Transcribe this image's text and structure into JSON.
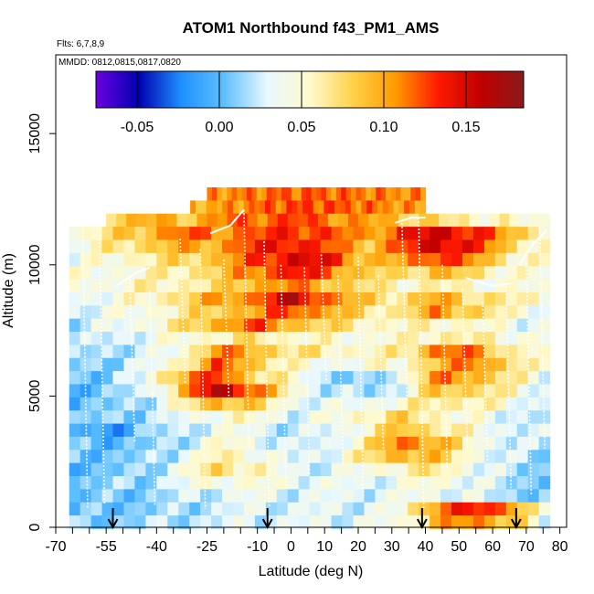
{
  "chart_data": {
    "type": "heatmap",
    "title": "ATOM1 Northbound f43_PM1_AMS",
    "subtitle_flights": "Flts: 6,7,8,9",
    "subtitle_dates": "MMDD: 0812,0815,0817,0820",
    "xlabel": "Latitude (deg N)",
    "ylabel": "Altitude (m)",
    "xlim": [
      -70,
      82
    ],
    "ylim": [
      0,
      18000
    ],
    "x_tick_labels": [
      "-70",
      "-55",
      "-40",
      "-25",
      "-10",
      "0",
      "10",
      "20",
      "30",
      "40",
      "50",
      "60",
      "70",
      "80"
    ],
    "x_tick_values": [
      -70,
      -55,
      -40,
      -25,
      -10,
      0,
      10,
      20,
      30,
      40,
      50,
      60,
      70,
      80
    ],
    "x_minor_ticks": [
      -65,
      -60,
      -50,
      -45,
      -35,
      -30,
      -20,
      -15,
      -5,
      5,
      15,
      25,
      35,
      45,
      55,
      65,
      75
    ],
    "y_tick_labels": [
      "0",
      "5000",
      "10000",
      "15000"
    ],
    "y_tick_values": [
      0,
      5000,
      10000,
      15000
    ],
    "colorbar": {
      "range": [
        -0.075,
        0.185
      ],
      "tick_labels": [
        "-0.05",
        "0.00",
        "0.05",
        "0.10",
        "0.15"
      ],
      "tick_values": [
        -0.05,
        0.0,
        0.05,
        0.1,
        0.15
      ],
      "colors": [
        "#6a00e0",
        "#0000b0",
        "#1e90ff",
        "#5fc0ff",
        "#e8f8ff",
        "#fffacd",
        "#ffd24a",
        "#ff9a00",
        "#ff1a00",
        "#c00000",
        "#8b1a1a"
      ]
    },
    "profile_markers_lat": [
      -53,
      -7,
      39,
      67
    ],
    "lat_extent": [
      -66,
      77
    ],
    "alt_extent": [
      0,
      13000
    ],
    "layers": [
      {
        "alt": 12700,
        "lat": [
          -25,
          40
        ],
        "values": [
          0.105,
          0.112,
          0.118,
          0.12,
          0.115,
          0.11,
          0.108
        ]
      },
      {
        "alt": 12200,
        "lat": [
          -30,
          40
        ],
        "values": [
          0.095,
          0.105,
          0.12,
          0.125,
          0.12,
          0.11,
          0.1
        ]
      },
      {
        "alt": 11700,
        "lat": [
          -55,
          77
        ],
        "values": [
          0.08,
          0.1,
          0.085,
          0.11,
          0.12,
          0.125,
          0.115,
          0.1,
          0.09,
          0.07,
          0.06,
          0.05,
          0.045
        ]
      },
      {
        "alt": 11200,
        "lat": [
          -66,
          77
        ],
        "values": [
          0.04,
          0.07,
          0.09,
          0.12,
          0.11,
          0.12,
          0.135,
          0.125,
          0.1,
          0.13,
          0.155,
          0.135,
          0.09,
          0.06
        ]
      },
      {
        "alt": 10700,
        "lat": [
          -66,
          77
        ],
        "values": [
          0.035,
          0.06,
          0.08,
          0.095,
          0.1,
          0.13,
          0.145,
          0.12,
          0.09,
          0.12,
          0.16,
          0.13,
          0.075,
          0.05
        ]
      },
      {
        "alt": 10200,
        "lat": [
          -66,
          77
        ],
        "values": [
          0.03,
          0.05,
          0.06,
          0.075,
          0.09,
          0.125,
          0.15,
          0.14,
          0.09,
          0.095,
          0.14,
          0.1,
          0.06,
          0.045
        ]
      },
      {
        "alt": 9700,
        "lat": [
          -66,
          77
        ],
        "values": [
          0.04,
          0.045,
          0.05,
          0.065,
          0.08,
          0.115,
          0.14,
          0.12,
          0.08,
          0.07,
          0.095,
          0.07,
          0.05,
          0.04
        ]
      },
      {
        "alt": 9200,
        "lat": [
          -66,
          77
        ],
        "values": [
          0.05,
          0.045,
          0.055,
          0.06,
          0.07,
          0.1,
          0.11,
          0.095,
          0.07,
          0.055,
          0.06,
          0.05,
          0.045,
          0.04
        ]
      },
      {
        "alt": 8700,
        "lat": [
          -66,
          77
        ],
        "values": [
          0.035,
          0.04,
          0.05,
          0.075,
          0.1,
          0.115,
          0.16,
          0.12,
          0.08,
          0.07,
          0.1,
          0.075,
          0.06,
          0.05
        ]
      },
      {
        "alt": 8200,
        "lat": [
          -66,
          77
        ],
        "values": [
          0.03,
          0.035,
          0.045,
          0.06,
          0.085,
          0.1,
          0.13,
          0.1,
          0.07,
          0.065,
          0.11,
          0.08,
          0.05,
          0.04
        ]
      },
      {
        "alt": 7700,
        "lat": [
          -66,
          77
        ],
        "values": [
          0.02,
          0.03,
          0.045,
          0.065,
          0.1,
          0.125,
          0.095,
          0.075,
          0.06,
          0.05,
          0.06,
          0.05,
          0.04,
          0.035
        ]
      },
      {
        "alt": 7200,
        "lat": [
          -66,
          77
        ],
        "values": [
          0.015,
          0.025,
          0.035,
          0.045,
          0.06,
          0.07,
          0.055,
          0.05,
          0.045,
          0.05,
          0.065,
          0.06,
          0.05,
          0.04
        ]
      },
      {
        "alt": 6700,
        "lat": [
          -66,
          77
        ],
        "values": [
          0.01,
          0.02,
          0.025,
          0.04,
          0.11,
          0.095,
          0.07,
          0.06,
          0.055,
          0.06,
          0.12,
          0.11,
          0.06,
          0.045
        ]
      },
      {
        "alt": 6200,
        "lat": [
          -66,
          77
        ],
        "values": [
          0.01,
          0.015,
          0.025,
          0.06,
          0.12,
          0.09,
          0.05,
          0.04,
          0.045,
          0.05,
          0.09,
          0.12,
          0.07,
          0.04
        ]
      },
      {
        "alt": 5700,
        "lat": [
          -66,
          77
        ],
        "values": [
          0.005,
          0.01,
          0.03,
          0.1,
          0.13,
          0.08,
          0.05,
          0.02,
          0.0,
          0.04,
          0.11,
          0.1,
          0.06,
          0.035
        ]
      },
      {
        "alt": 5200,
        "lat": [
          -66,
          77
        ],
        "values": [
          0.0,
          0.005,
          0.025,
          0.08,
          0.17,
          0.12,
          0.055,
          0.02,
          0.015,
          0.03,
          0.09,
          0.08,
          0.05,
          0.03
        ]
      },
      {
        "alt": 4700,
        "lat": [
          -66,
          77
        ],
        "values": [
          0.0,
          0.005,
          0.02,
          0.05,
          0.1,
          0.08,
          0.04,
          0.03,
          0.04,
          0.05,
          0.07,
          0.06,
          0.04,
          0.025
        ]
      },
      {
        "alt": 4200,
        "lat": [
          -66,
          77
        ],
        "values": [
          0.005,
          0.01,
          0.015,
          0.03,
          0.05,
          0.05,
          0.03,
          0.04,
          0.06,
          0.075,
          0.06,
          0.04,
          0.03,
          0.02
        ]
      },
      {
        "alt": 3700,
        "lat": [
          -66,
          77
        ],
        "values": [
          0.0,
          -0.02,
          0.01,
          0.02,
          0.04,
          0.035,
          0.02,
          0.03,
          0.05,
          0.09,
          0.07,
          0.045,
          0.03,
          0.02
        ]
      },
      {
        "alt": 3200,
        "lat": [
          -66,
          77
        ],
        "values": [
          0.005,
          0.0,
          0.005,
          0.02,
          0.05,
          0.04,
          0.02,
          0.03,
          0.06,
          0.12,
          0.095,
          0.05,
          0.025,
          0.015
        ]
      },
      {
        "alt": 2700,
        "lat": [
          -66,
          77
        ],
        "values": [
          0.005,
          0.005,
          0.01,
          0.03,
          0.06,
          0.05,
          0.025,
          0.035,
          0.065,
          0.1,
          0.085,
          0.045,
          0.02,
          0.01
        ]
      },
      {
        "alt": 2200,
        "lat": [
          -66,
          77
        ],
        "values": [
          0.0,
          0.005,
          0.01,
          0.04,
          0.075,
          0.06,
          0.03,
          0.03,
          0.04,
          0.06,
          0.065,
          0.04,
          0.015,
          0.01
        ]
      },
      {
        "alt": 1700,
        "lat": [
          -66,
          77
        ],
        "values": [
          0.005,
          0.01,
          0.015,
          0.03,
          0.05,
          0.045,
          0.04,
          0.035,
          0.03,
          0.04,
          0.05,
          0.035,
          0.015,
          0.01
        ]
      },
      {
        "alt": 1200,
        "lat": [
          -66,
          77
        ],
        "values": [
          0.0,
          0.005,
          0.01,
          0.02,
          0.03,
          0.035,
          0.03,
          0.03,
          0.03,
          0.035,
          0.04,
          0.03,
          0.015,
          0.01
        ]
      },
      {
        "alt": 700,
        "lat": [
          -66,
          77
        ],
        "values": [
          0.0,
          0.005,
          0.01,
          0.015,
          0.025,
          0.03,
          0.03,
          0.03,
          0.03,
          0.04,
          0.12,
          0.135,
          0.115,
          0.02
        ]
      },
      {
        "alt": 200,
        "lat": [
          -66,
          77
        ],
        "values": [
          0.005,
          0.01,
          0.015,
          0.02,
          0.025,
          0.03,
          0.03,
          0.03,
          0.035,
          0.04,
          0.1,
          0.11,
          0.09,
          0.015
        ]
      }
    ]
  }
}
